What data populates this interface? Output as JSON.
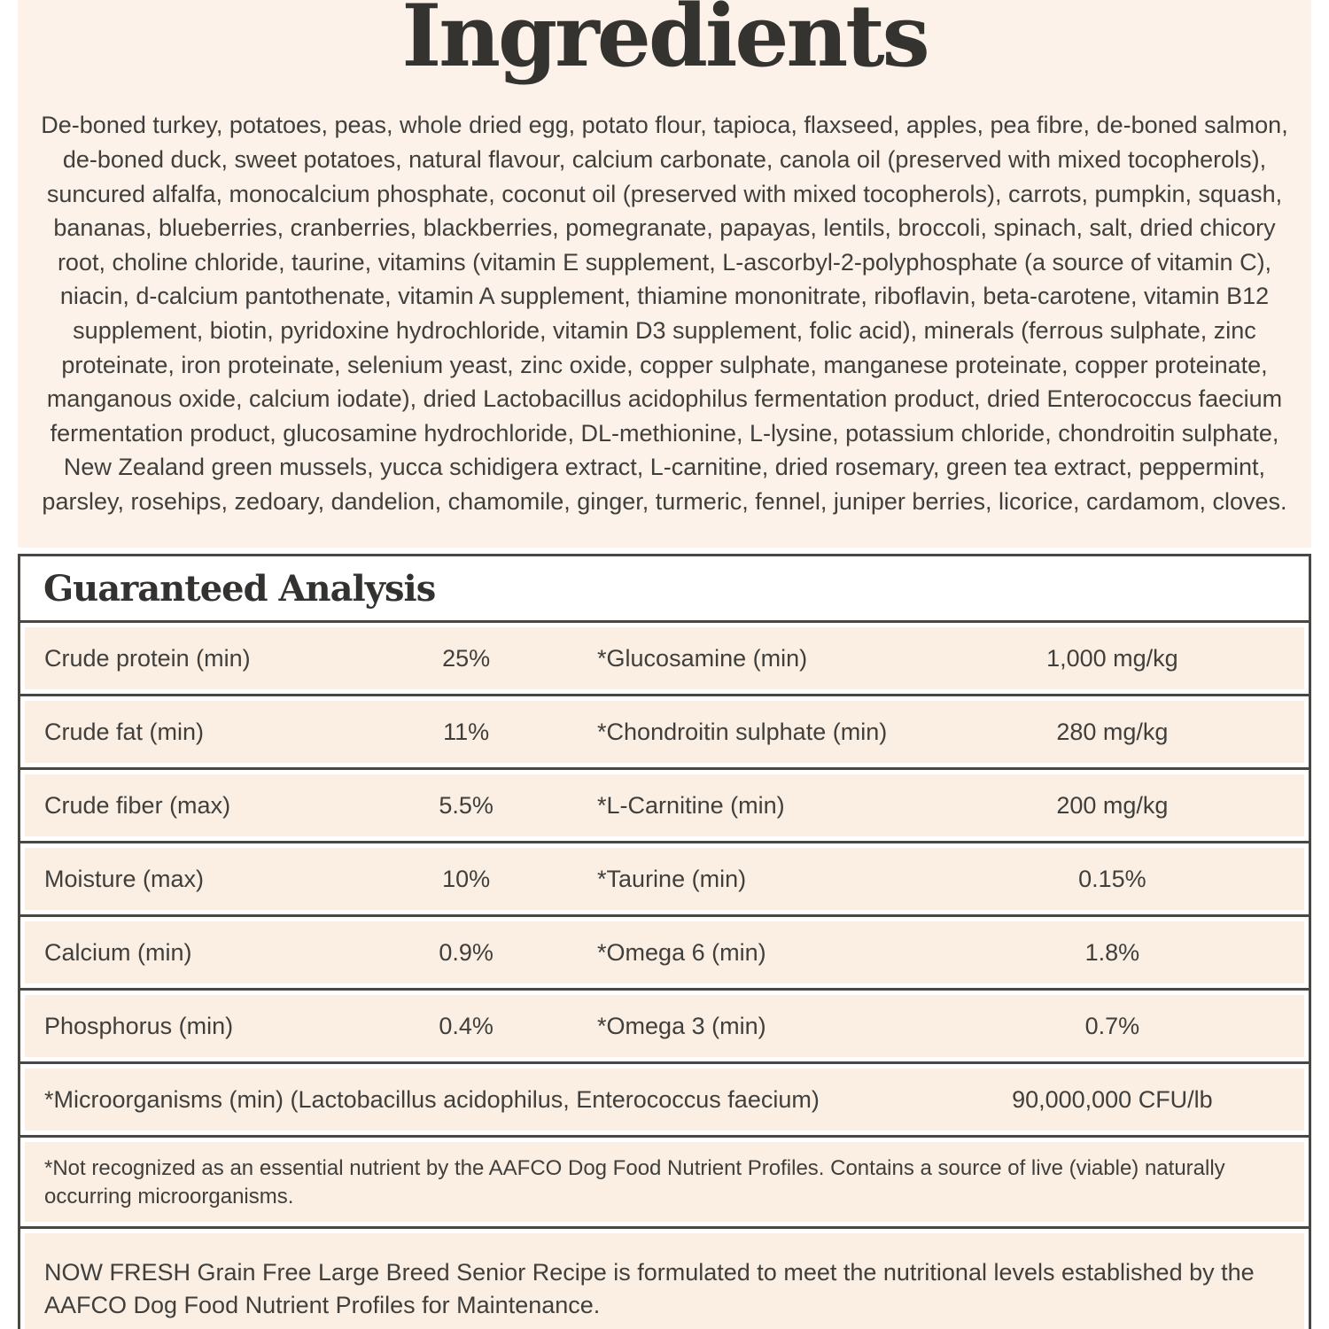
{
  "page": {
    "title": "Ingredients",
    "ingredients_text": "De-boned turkey, potatoes, peas, whole dried egg, potato flour, tapioca, flaxseed, apples, pea fibre, de-boned salmon, de-boned duck, sweet potatoes, natural flavour, calcium carbonate, canola oil (preserved with mixed tocopherols), suncured alfalfa, monocalcium phosphate, coconut oil (preserved with mixed tocopherols), carrots, pumpkin, squash, bananas, blueberries, cranberries, blackberries, pomegranate, papayas, lentils, broccoli, spinach, salt, dried chicory root, choline chloride, taurine, vitamins (vitamin E supplement, L-ascorbyl-2-polyphosphate (a source of vitamin C), niacin, d-calcium pantothenate, vitamin A supplement, thiamine mononitrate, riboflavin, beta-carotene, vitamin B12 supplement, biotin, pyridoxine hydrochloride, vitamin D3 supplement, folic acid), minerals (ferrous sulphate, zinc proteinate, iron proteinate, selenium yeast, zinc oxide, copper sulphate, manganese proteinate, copper proteinate, manganous oxide, calcium iodate), dried Lactobacillus acidophilus fermentation product, dried Enterococcus faecium fermentation product, glucosamine hydrochloride, DL-methionine, L-lysine, potassium chloride, chondroitin sulphate, New Zealand green mussels, yucca schidigera extract, L-carnitine, dried rosemary, green tea extract, peppermint, parsley, rosehips, zedoary, dandelion, chamomile, ginger, turmeric, fennel, juniper berries, licorice, cardamom, cloves."
  },
  "guaranteed_analysis": {
    "heading": "Guaranteed Analysis",
    "rows": [
      {
        "label1": "Crude protein (min)",
        "value1": "25%",
        "label2": "*Glucosamine (min)",
        "value2": "1,000 mg/kg"
      },
      {
        "label1": "Crude fat (min)",
        "value1": "11%",
        "label2": "*Chondroitin sulphate (min)",
        "value2": "280 mg/kg"
      },
      {
        "label1": "Crude fiber (max)",
        "value1": "5.5%",
        "label2": "*L-Carnitine (min)",
        "value2": "200 mg/kg"
      },
      {
        "label1": "Moisture (max)",
        "value1": "10%",
        "label2": "*Taurine (min)",
        "value2": "0.15%"
      },
      {
        "label1": "Calcium (min)",
        "value1": "0.9%",
        "label2": "*Omega 6 (min)",
        "value2": "1.8%"
      },
      {
        "label1": "Phosphorus (min)",
        "value1": "0.4%",
        "label2": "*Omega 3 (min)",
        "value2": "0.7%"
      }
    ],
    "microorganisms_row": {
      "label": "*Microorganisms (min) (Lactobacillus acidophilus, Enterococcus faecium)",
      "value": "90,000,000 CFU/lb"
    },
    "footnote": "*Not recognized as an essential nutrient by the AAFCO Dog Food Nutrient Profiles. Contains a source of live (viable) naturally occurring microorganisms.",
    "statement": "NOW FRESH Grain Free Large Breed Senior Recipe is formulated to meet the nutritional levels established by the AAFCO Dog Food Nutrient Profiles for Maintenance."
  },
  "colors": {
    "panel_peach": "#fdf2ea",
    "row_peach": "#fbefe4",
    "border_dark": "#4a4641",
    "text_dark": "#403f3c",
    "heading_dark": "#333230",
    "page_white": "#ffffff"
  }
}
